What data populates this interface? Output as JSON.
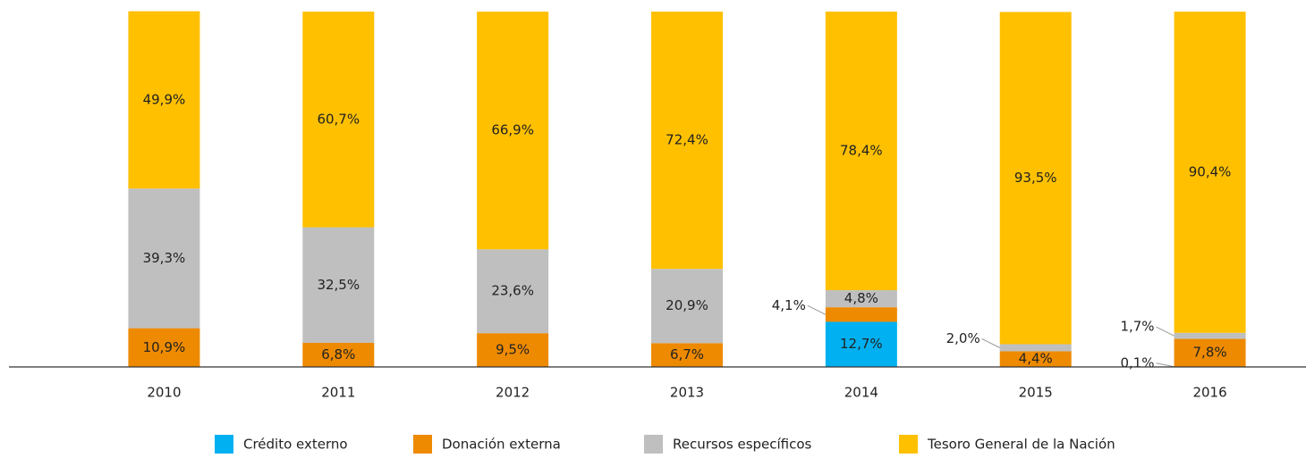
{
  "chart_data": {
    "type": "stacked-bar",
    "categories": [
      "2010",
      "2011",
      "2012",
      "2013",
      "2014",
      "2015",
      "2016"
    ],
    "ylim": [
      0,
      100
    ],
    "series": [
      {
        "name": "Crédito externo",
        "color": "#00b0f0",
        "values": [
          null,
          null,
          null,
          null,
          12.7,
          null,
          0.1
        ],
        "value_labels": [
          null,
          null,
          null,
          null,
          "12,7%",
          null,
          "0,1%"
        ]
      },
      {
        "name": "Donación externa",
        "color": "#ee8a00",
        "values": [
          10.9,
          6.8,
          9.5,
          6.7,
          4.1,
          4.4,
          7.8
        ],
        "value_labels": [
          "10,9%",
          "6,8%",
          "9,5%",
          "6,7%",
          "4,1%",
          "4,4%",
          "7,8%"
        ]
      },
      {
        "name": "Recursos específicos",
        "color": "#bfbfbf",
        "values": [
          39.3,
          32.5,
          23.6,
          20.9,
          4.8,
          2.0,
          1.7
        ],
        "value_labels": [
          "39,3%",
          "32,5%",
          "23,6%",
          "20,9%",
          "4,8%",
          "2,0%",
          "1,7%"
        ]
      },
      {
        "name": "Tesoro General de la Nación",
        "color": "#ffc000",
        "values": [
          49.9,
          60.7,
          66.9,
          72.4,
          78.4,
          93.5,
          90.4
        ],
        "value_labels": [
          "49,9%",
          "60,7%",
          "66,9%",
          "72,4%",
          "78,4%",
          "93,5%",
          "90,4%"
        ]
      }
    ]
  }
}
